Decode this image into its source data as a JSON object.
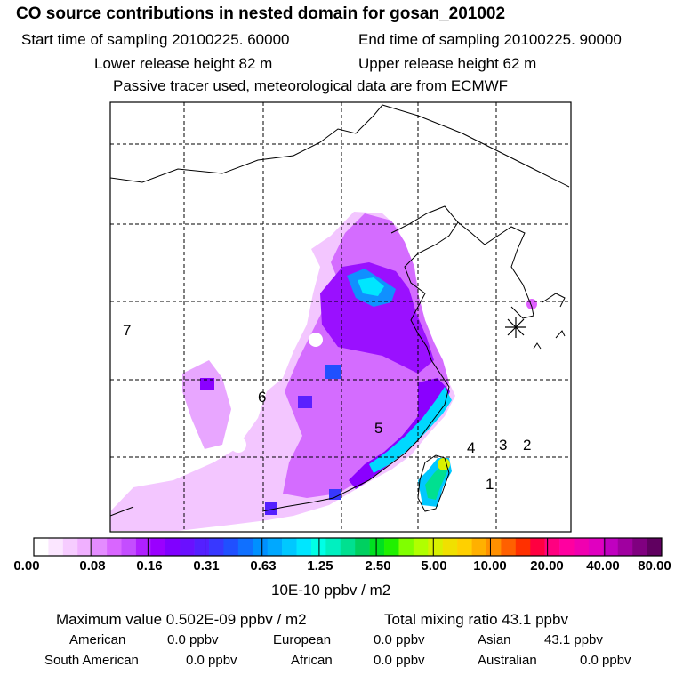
{
  "header": {
    "title": "CO  source contributions in nested domain for gosan_201002",
    "start_time": "Start time of sampling 20100225. 60000",
    "end_time": "End time of sampling 20100225. 90000",
    "lower_height": "Lower release height   82 m",
    "upper_height": "Upper release height   62 m",
    "tracer_note": "Passive tracer used, meteorological data are from ECMWF"
  },
  "map": {
    "region_labels": [
      "7",
      "6",
      "5",
      "4",
      "3",
      "2",
      "1"
    ],
    "receptor_marker": "asterisk-marker",
    "grid_style": "dashed",
    "max_color": "#80ff00"
  },
  "colorbar": {
    "unit": "10E-10 ppbv / m2",
    "ticks": [
      "0.00",
      "0.08",
      "0.16",
      "0.31",
      "0.63",
      "1.25",
      "2.50",
      "5.00",
      "10.00",
      "20.00",
      "40.00",
      "80.00"
    ],
    "colors": [
      "#ffffff",
      "#fbe6ff",
      "#f6ccff",
      "#f0b0ff",
      "#e48cff",
      "#d966ff",
      "#c44dff",
      "#b020ff",
      "#9a00ff",
      "#8000ff",
      "#6a10ff",
      "#5420ff",
      "#3838ff",
      "#2050ff",
      "#1070ff",
      "#0090ff",
      "#00a8ff",
      "#00c8ff",
      "#00e6ff",
      "#00ffe6",
      "#00f0c0",
      "#00e090",
      "#00d060",
      "#00e020",
      "#20f000",
      "#80ff00",
      "#b0ff00",
      "#d8f000",
      "#f0e000",
      "#ffd000",
      "#ffb000",
      "#ff9000",
      "#ff6000",
      "#ff3000",
      "#ff0040",
      "#ff0080",
      "#ff00a0",
      "#f000b0",
      "#e000c0",
      "#c000c0",
      "#a000a0",
      "#800080",
      "#600060"
    ]
  },
  "summary": {
    "max_value": "Maximum value  0.502E-09 ppbv / m2",
    "total_mixing": "Total mixing ratio       43.1 ppbv",
    "regions": [
      {
        "label": "American",
        "value": "0.0 ppbv"
      },
      {
        "label": "European",
        "value": "0.0 ppbv"
      },
      {
        "label": "Asian",
        "value": "43.1 ppbv"
      },
      {
        "label": "South American",
        "value": "0.0 ppbv"
      },
      {
        "label": "African",
        "value": "0.0 ppbv"
      },
      {
        "label": "Australian",
        "value": "0.0 ppbv"
      }
    ]
  }
}
